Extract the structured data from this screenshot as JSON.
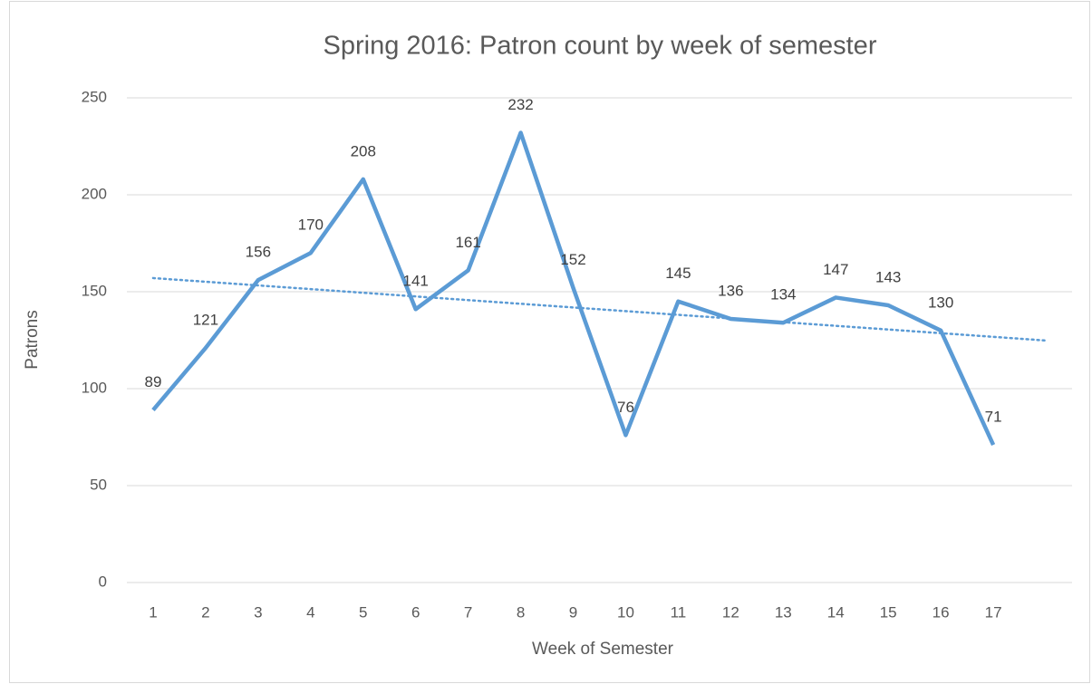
{
  "chart_data": {
    "type": "line",
    "title": "Spring 2016: Patron count by week of semester",
    "x_label": "Week of Semester",
    "y_label": "Patrons",
    "categories": [
      "1",
      "2",
      "3",
      "4",
      "5",
      "6",
      "7",
      "8",
      "9",
      "10",
      "11",
      "12",
      "13",
      "14",
      "15",
      "16",
      "17",
      null
    ],
    "series": [
      {
        "name": "Patrons",
        "color": "#5b9bd5",
        "values": [
          89,
          121,
          156,
          170,
          208,
          141,
          161,
          232,
          152,
          76,
          145,
          136,
          134,
          147,
          143,
          130,
          71,
          null
        ]
      }
    ],
    "ylim": [
      0,
      250
    ],
    "yticks": [
      0,
      50,
      100,
      150,
      200,
      250
    ],
    "grid": true,
    "data_labels": true,
    "trendline": {
      "type": "linear",
      "style": "dotted",
      "color": "#5b9bd5"
    }
  }
}
